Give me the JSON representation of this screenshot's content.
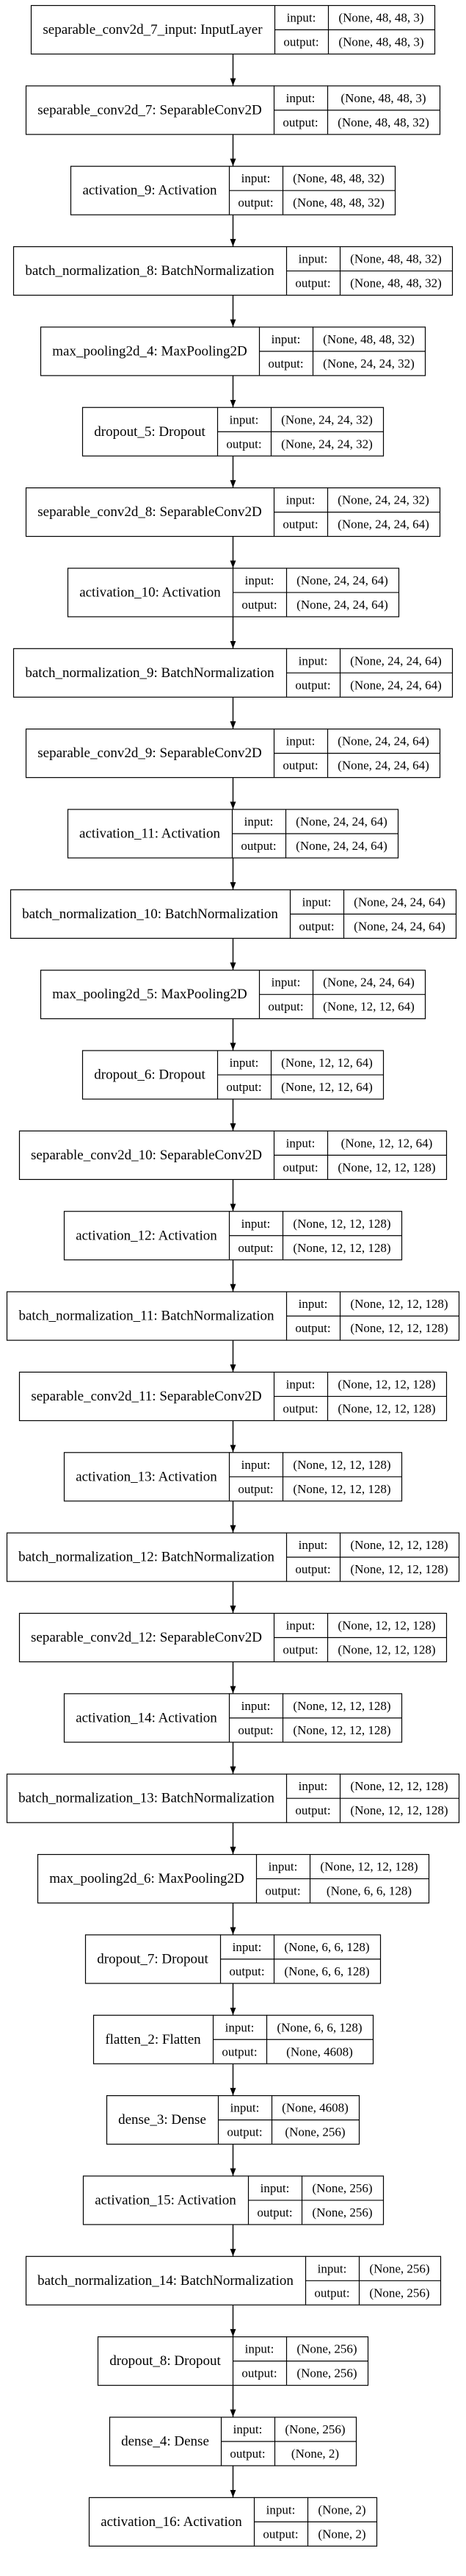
{
  "style": {
    "stroke": "#000000",
    "background": "#ffffff"
  },
  "port_labels": {
    "input": "input:",
    "output": "output:"
  },
  "layers": [
    {
      "label": "separable_conv2d_7_input: InputLayer",
      "input": "(None, 48, 48, 3)",
      "output": "(None, 48, 48, 3)"
    },
    {
      "label": "separable_conv2d_7: SeparableConv2D",
      "input": "(None, 48, 48, 3)",
      "output": "(None, 48, 48, 32)"
    },
    {
      "label": "activation_9: Activation",
      "input": "(None, 48, 48, 32)",
      "output": "(None, 48, 48, 32)"
    },
    {
      "label": "batch_normalization_8: BatchNormalization",
      "input": "(None, 48, 48, 32)",
      "output": "(None, 48, 48, 32)"
    },
    {
      "label": "max_pooling2d_4: MaxPooling2D",
      "input": "(None, 48, 48, 32)",
      "output": "(None, 24, 24, 32)"
    },
    {
      "label": "dropout_5: Dropout",
      "input": "(None, 24, 24, 32)",
      "output": "(None, 24, 24, 32)"
    },
    {
      "label": "separable_conv2d_8: SeparableConv2D",
      "input": "(None, 24, 24, 32)",
      "output": "(None, 24, 24, 64)"
    },
    {
      "label": "activation_10: Activation",
      "input": "(None, 24, 24, 64)",
      "output": "(None, 24, 24, 64)"
    },
    {
      "label": "batch_normalization_9: BatchNormalization",
      "input": "(None, 24, 24, 64)",
      "output": "(None, 24, 24, 64)"
    },
    {
      "label": "separable_conv2d_9: SeparableConv2D",
      "input": "(None, 24, 24, 64)",
      "output": "(None, 24, 24, 64)"
    },
    {
      "label": "activation_11: Activation",
      "input": "(None, 24, 24, 64)",
      "output": "(None, 24, 24, 64)"
    },
    {
      "label": "batch_normalization_10: BatchNormalization",
      "input": "(None, 24, 24, 64)",
      "output": "(None, 24, 24, 64)"
    },
    {
      "label": "max_pooling2d_5: MaxPooling2D",
      "input": "(None, 24, 24, 64)",
      "output": "(None, 12, 12, 64)"
    },
    {
      "label": "dropout_6: Dropout",
      "input": "(None, 12, 12, 64)",
      "output": "(None, 12, 12, 64)"
    },
    {
      "label": "separable_conv2d_10: SeparableConv2D",
      "input": "(None, 12, 12, 64)",
      "output": "(None, 12, 12, 128)"
    },
    {
      "label": "activation_12: Activation",
      "input": "(None, 12, 12, 128)",
      "output": "(None, 12, 12, 128)"
    },
    {
      "label": "batch_normalization_11: BatchNormalization",
      "input": "(None, 12, 12, 128)",
      "output": "(None, 12, 12, 128)"
    },
    {
      "label": "separable_conv2d_11: SeparableConv2D",
      "input": "(None, 12, 12, 128)",
      "output": "(None, 12, 12, 128)"
    },
    {
      "label": "activation_13: Activation",
      "input": "(None, 12, 12, 128)",
      "output": "(None, 12, 12, 128)"
    },
    {
      "label": "batch_normalization_12: BatchNormalization",
      "input": "(None, 12, 12, 128)",
      "output": "(None, 12, 12, 128)"
    },
    {
      "label": "separable_conv2d_12: SeparableConv2D",
      "input": "(None, 12, 12, 128)",
      "output": "(None, 12, 12, 128)"
    },
    {
      "label": "activation_14: Activation",
      "input": "(None, 12, 12, 128)",
      "output": "(None, 12, 12, 128)"
    },
    {
      "label": "batch_normalization_13: BatchNormalization",
      "input": "(None, 12, 12, 128)",
      "output": "(None, 12, 12, 128)"
    },
    {
      "label": "max_pooling2d_6: MaxPooling2D",
      "input": "(None, 12, 12, 128)",
      "output": "(None, 6, 6, 128)"
    },
    {
      "label": "dropout_7: Dropout",
      "input": "(None, 6, 6, 128)",
      "output": "(None, 6, 6, 128)"
    },
    {
      "label": "flatten_2: Flatten",
      "input": "(None, 6, 6, 128)",
      "output": "(None, 4608)"
    },
    {
      "label": "dense_3: Dense",
      "input": "(None, 4608)",
      "output": "(None, 256)"
    },
    {
      "label": "activation_15: Activation",
      "input": "(None, 256)",
      "output": "(None, 256)"
    },
    {
      "label": "batch_normalization_14: BatchNormalization",
      "input": "(None, 256)",
      "output": "(None, 256)"
    },
    {
      "label": "dropout_8: Dropout",
      "input": "(None, 256)",
      "output": "(None, 256)"
    },
    {
      "label": "dense_4: Dense",
      "input": "(None, 256)",
      "output": "(None, 2)"
    },
    {
      "label": "activation_16: Activation",
      "input": "(None, 2)",
      "output": "(None, 2)"
    }
  ]
}
